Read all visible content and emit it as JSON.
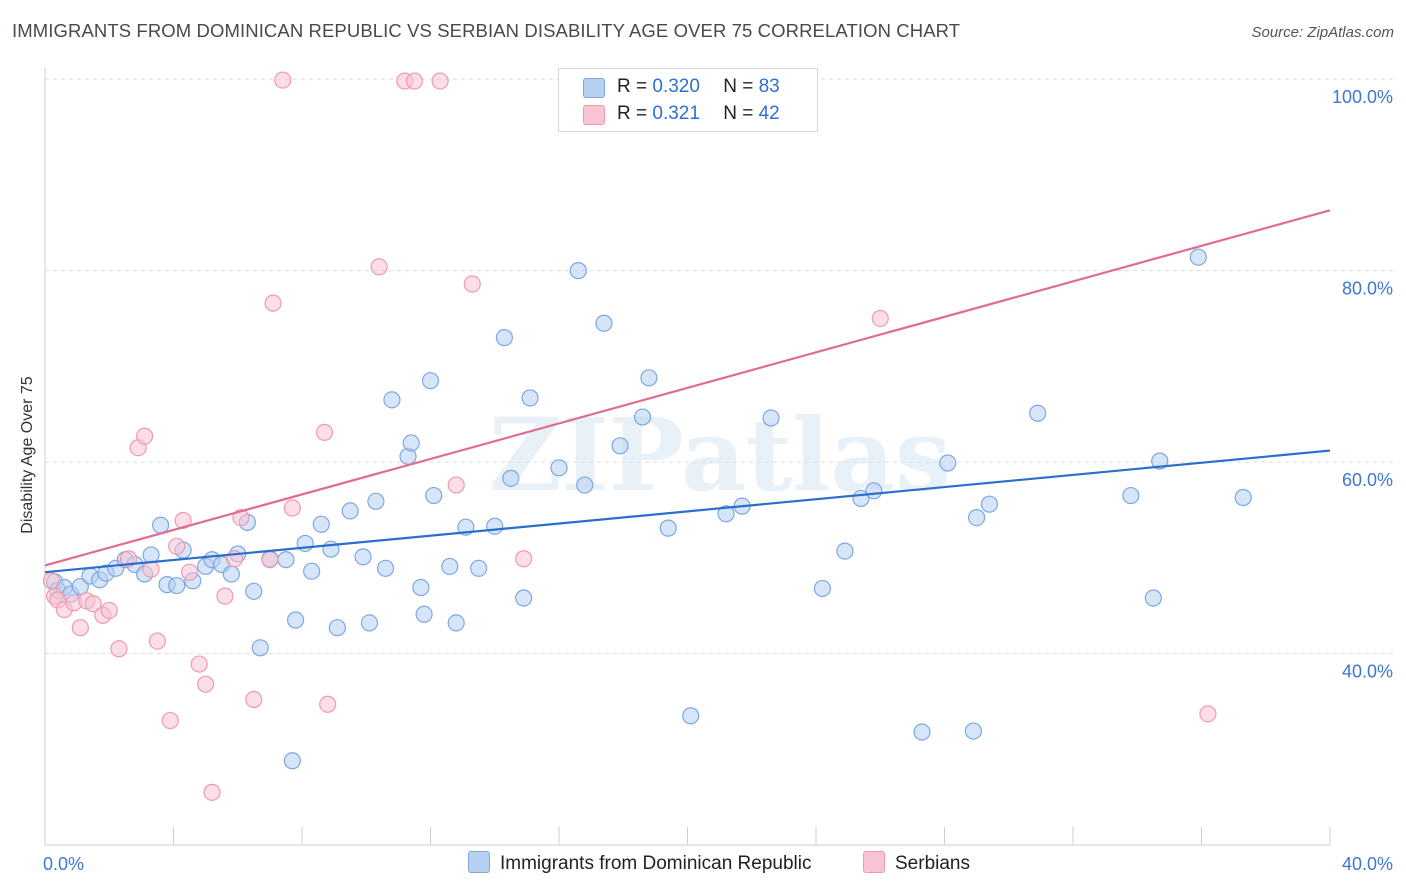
{
  "title": "IMMIGRANTS FROM DOMINICAN REPUBLIC VS SERBIAN DISABILITY AGE OVER 75 CORRELATION CHART",
  "source": "Source: ZipAtlas.com",
  "legend": {
    "rows": [
      {
        "r_label": "R = ",
        "r_value": "0.320",
        "n_label": "N = ",
        "n_value": "83"
      },
      {
        "r_label": "R = ",
        "r_value": " 0.321",
        "n_label": "N = ",
        "n_value": "42"
      }
    ]
  },
  "bottom_legend": {
    "series1": "Immigrants from Dominican Republic",
    "series2": "Serbians"
  },
  "colors": {
    "blue_fill": "#b6d0f2",
    "blue_stroke": "#7ea8e0",
    "blue_line": "#2a6fcd",
    "pink_fill": "#f8c3d2",
    "pink_stroke": "#ee9ab3",
    "pink_line": "#e06c93",
    "tick_label": "#3a78d4",
    "grid": "#dcdcdc"
  },
  "chart_data": {
    "type": "scatter",
    "title": "IMMIGRANTS FROM DOMINICAN REPUBLIC VS SERBIAN DISABILITY AGE OVER 75 CORRELATION CHART",
    "xlabel": "",
    "ylabel": "Disability Age Over 75",
    "xlim": [
      0,
      40
    ],
    "ylim": [
      20,
      102
    ],
    "x_tick_labels": [
      "0.0%",
      "40.0%"
    ],
    "y_ticks": [
      40,
      60,
      80,
      100
    ],
    "y_tick_labels": [
      "40.0%",
      "60.0%",
      "80.0%",
      "100.0%"
    ],
    "watermark": "ZIPatlas",
    "series": [
      {
        "name": "Immigrants from Dominican Republic",
        "color": "#7ea8e0",
        "r": 0.32,
        "n": 83,
        "trend": {
          "x": [
            0,
            40
          ],
          "y": [
            48.5,
            61.2
          ]
        },
        "points": [
          [
            0.3,
            47.5
          ],
          [
            0.4,
            46.6
          ],
          [
            0.6,
            46.9
          ],
          [
            0.8,
            46.2
          ],
          [
            1.1,
            47.0
          ],
          [
            1.4,
            48.1
          ],
          [
            1.7,
            47.7
          ],
          [
            1.9,
            48.4
          ],
          [
            2.2,
            48.9
          ],
          [
            2.5,
            49.8
          ],
          [
            2.8,
            49.3
          ],
          [
            3.1,
            48.3
          ],
          [
            3.3,
            50.3
          ],
          [
            3.6,
            53.4
          ],
          [
            3.8,
            47.2
          ],
          [
            4.1,
            47.1
          ],
          [
            4.3,
            50.8
          ],
          [
            4.6,
            47.6
          ],
          [
            5.0,
            49.1
          ],
          [
            5.2,
            49.8
          ],
          [
            5.5,
            49.3
          ],
          [
            5.8,
            48.3
          ],
          [
            6.0,
            50.4
          ],
          [
            6.3,
            53.7
          ],
          [
            6.5,
            46.5
          ],
          [
            6.7,
            40.6
          ],
          [
            7.0,
            49.9
          ],
          [
            7.5,
            49.8
          ],
          [
            7.7,
            28.8
          ],
          [
            7.8,
            43.5
          ],
          [
            8.1,
            51.5
          ],
          [
            8.3,
            48.6
          ],
          [
            8.6,
            53.5
          ],
          [
            8.9,
            50.9
          ],
          [
            9.1,
            42.7
          ],
          [
            9.5,
            54.9
          ],
          [
            9.9,
            50.1
          ],
          [
            10.1,
            43.2
          ],
          [
            10.3,
            55.9
          ],
          [
            10.6,
            48.9
          ],
          [
            10.8,
            66.5
          ],
          [
            11.3,
            60.6
          ],
          [
            11.4,
            62.0
          ],
          [
            11.7,
            46.9
          ],
          [
            11.8,
            44.1
          ],
          [
            12.0,
            68.5
          ],
          [
            12.1,
            56.5
          ],
          [
            12.6,
            49.1
          ],
          [
            12.8,
            43.2
          ],
          [
            13.1,
            53.2
          ],
          [
            13.5,
            48.9
          ],
          [
            14.0,
            53.3
          ],
          [
            14.3,
            73.0
          ],
          [
            14.5,
            58.3
          ],
          [
            14.9,
            45.8
          ],
          [
            15.1,
            66.7
          ],
          [
            16.0,
            59.4
          ],
          [
            16.6,
            80.0
          ],
          [
            16.8,
            57.6
          ],
          [
            17.4,
            74.5
          ],
          [
            17.9,
            61.7
          ],
          [
            18.6,
            64.7
          ],
          [
            18.8,
            68.8
          ],
          [
            19.4,
            53.1
          ],
          [
            20.1,
            33.5
          ],
          [
            21.2,
            54.6
          ],
          [
            21.7,
            55.4
          ],
          [
            22.6,
            64.6
          ],
          [
            24.2,
            46.8
          ],
          [
            24.9,
            50.7
          ],
          [
            25.4,
            56.2
          ],
          [
            25.8,
            57.0
          ],
          [
            27.3,
            31.8
          ],
          [
            28.1,
            59.9
          ],
          [
            28.9,
            31.9
          ],
          [
            29.0,
            54.2
          ],
          [
            29.4,
            55.6
          ],
          [
            30.9,
            65.1
          ],
          [
            33.8,
            56.5
          ],
          [
            34.5,
            45.8
          ],
          [
            34.7,
            60.1
          ],
          [
            35.9,
            81.4
          ],
          [
            37.3,
            56.3
          ]
        ]
      },
      {
        "name": "Serbians",
        "color": "#ee9ab3",
        "r": 0.321,
        "n": 42,
        "trend": {
          "x": [
            0,
            40
          ],
          "y": [
            49.2,
            86.3
          ]
        },
        "points": [
          [
            0.2,
            47.6
          ],
          [
            0.3,
            46.0
          ],
          [
            0.4,
            45.6
          ],
          [
            0.6,
            44.6
          ],
          [
            0.9,
            45.3
          ],
          [
            1.1,
            42.7
          ],
          [
            1.3,
            45.5
          ],
          [
            1.5,
            45.2
          ],
          [
            1.8,
            44.0
          ],
          [
            2.0,
            44.5
          ],
          [
            2.3,
            40.5
          ],
          [
            2.6,
            49.9
          ],
          [
            2.9,
            61.5
          ],
          [
            3.1,
            62.7
          ],
          [
            3.3,
            48.8
          ],
          [
            3.5,
            41.3
          ],
          [
            3.9,
            33.0
          ],
          [
            4.1,
            51.2
          ],
          [
            4.3,
            53.9
          ],
          [
            4.5,
            48.5
          ],
          [
            4.8,
            38.9
          ],
          [
            5.0,
            36.8
          ],
          [
            5.2,
            25.5
          ],
          [
            5.6,
            46.0
          ],
          [
            5.9,
            49.9
          ],
          [
            6.1,
            54.2
          ],
          [
            6.5,
            35.2
          ],
          [
            7.0,
            49.8
          ],
          [
            7.1,
            76.6
          ],
          [
            7.4,
            99.9
          ],
          [
            7.7,
            55.2
          ],
          [
            8.7,
            63.1
          ],
          [
            8.8,
            34.7
          ],
          [
            10.4,
            80.4
          ],
          [
            11.2,
            99.8
          ],
          [
            11.5,
            99.8
          ],
          [
            12.3,
            99.8
          ],
          [
            12.8,
            57.6
          ],
          [
            13.3,
            78.6
          ],
          [
            14.9,
            49.9
          ],
          [
            26.0,
            75.0
          ],
          [
            36.2,
            33.7
          ]
        ]
      }
    ]
  }
}
